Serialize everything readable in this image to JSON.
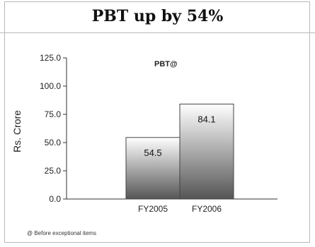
{
  "title": "PBT up by 54%",
  "footnote": "@ Before exceptional items",
  "chart_data": {
    "type": "bar",
    "categories": [
      "FY2005",
      "FY2006"
    ],
    "series": [
      {
        "name": "PBT@",
        "values": [
          54.5,
          84.1
        ]
      }
    ],
    "data_labels": [
      "54.5",
      "84.1"
    ],
    "ylabel": "Rs. Crore",
    "xlabel": "",
    "ylim": [
      0,
      125
    ],
    "yticks": [
      0,
      25,
      50,
      75,
      100,
      125
    ],
    "ytick_labels": [
      "0.0",
      "25.0",
      "50.0",
      "75.0",
      "100.0",
      "125.0"
    ],
    "grid": false,
    "legend_position": "top",
    "bar_gradient": {
      "light": "#ffffff",
      "dark": "#555555"
    }
  }
}
